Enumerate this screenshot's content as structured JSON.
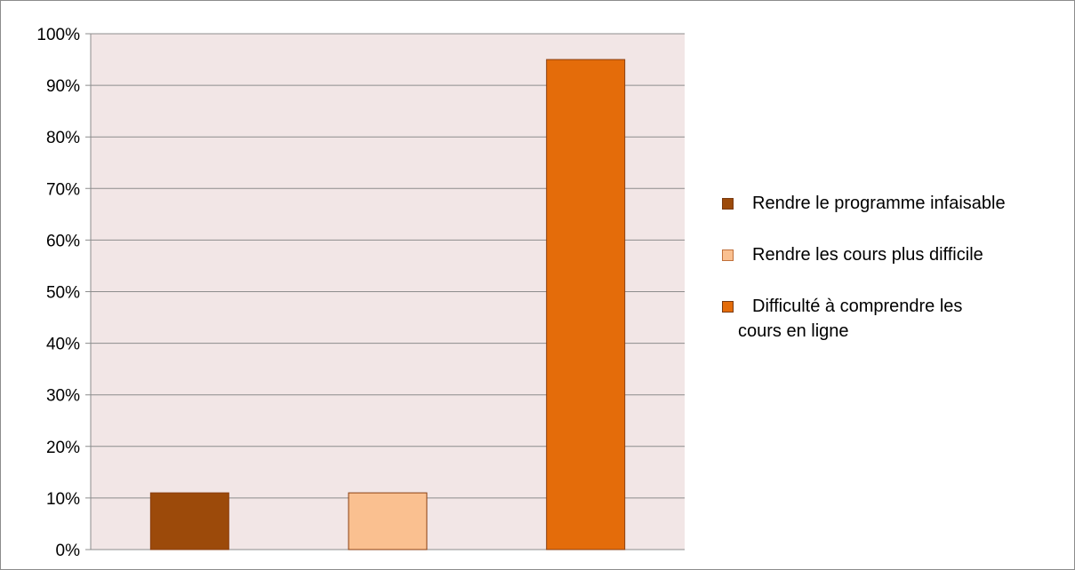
{
  "chart_data": {
    "type": "bar",
    "title": "",
    "xlabel": "",
    "ylabel": "",
    "ylim": [
      0,
      1
    ],
    "yticks": [
      "0%",
      "10%",
      "20%",
      "30%",
      "40%",
      "50%",
      "60%",
      "70%",
      "80%",
      "90%",
      "100%"
    ],
    "grid": true,
    "plot_background": "#f2e6e6",
    "legend_position": "right",
    "categories": [
      "Rendre le programme infaisable",
      "Rendre les cours plus difficile",
      "Difficulté à comprendre les cours en ligne"
    ],
    "values": [
      0.11,
      0.11,
      0.95
    ],
    "colors": [
      "#9c4a0a",
      "#fac090",
      "#e46c0a"
    ],
    "legend": [
      {
        "label": "Rendre le programme infaisable",
        "color": "#9c4a0a"
      },
      {
        "label": "Rendre les cours plus difficile",
        "color": "#fac090"
      },
      {
        "label_line1": "Difficulté à comprendre les",
        "label_line2": "cours en ligne",
        "color": "#e46c0a"
      }
    ]
  }
}
